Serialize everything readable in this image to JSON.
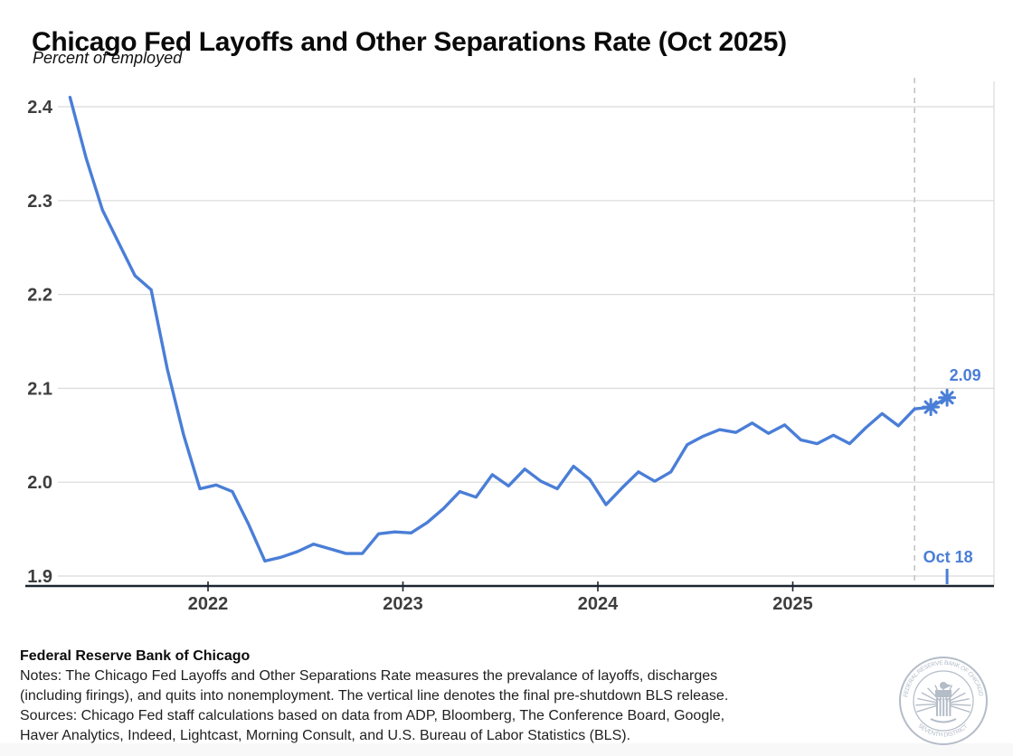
{
  "header": {
    "title": "Chicago Fed Layoffs and Other Separations Rate (Oct 2025)",
    "subtitle": "Percent of employed"
  },
  "chart_data": {
    "type": "line",
    "title": "Chicago Fed Layoffs and Other Separations Rate (Oct 2025)",
    "ylabel": "Percent of employed",
    "ylim": [
      1.9,
      2.42
    ],
    "grid": "horizontal",
    "ytick_labels": [
      "2.4",
      "2.3",
      "2.2",
      "2.1",
      "2.0",
      "1.9"
    ],
    "ytick_values": [
      2.4,
      2.3,
      2.2,
      2.1,
      2.0,
      1.9
    ],
    "xtick_labels": [
      "2022",
      "2023",
      "2024",
      "2025"
    ],
    "xtick_years": [
      2022,
      2023,
      2024,
      2025
    ],
    "line_color": "#4a7ed7",
    "series": [
      {
        "name": "Layoffs and other separations rate",
        "points": [
          {
            "m": "2021-04",
            "v": 2.41
          },
          {
            "m": "2021-05",
            "v": 2.345
          },
          {
            "m": "2021-06",
            "v": 2.29
          },
          {
            "m": "2021-07",
            "v": 2.255
          },
          {
            "m": "2021-08",
            "v": 2.22
          },
          {
            "m": "2021-09",
            "v": 2.205
          },
          {
            "m": "2021-10",
            "v": 2.12
          },
          {
            "m": "2021-11",
            "v": 2.05
          },
          {
            "m": "2021-12",
            "v": 1.993
          },
          {
            "m": "2022-01",
            "v": 1.997
          },
          {
            "m": "2022-02",
            "v": 1.99
          },
          {
            "m": "2022-03",
            "v": 1.955
          },
          {
            "m": "2022-04",
            "v": 1.916
          },
          {
            "m": "2022-05",
            "v": 1.92
          },
          {
            "m": "2022-06",
            "v": 1.926
          },
          {
            "m": "2022-07",
            "v": 1.934
          },
          {
            "m": "2022-08",
            "v": 1.929
          },
          {
            "m": "2022-09",
            "v": 1.924
          },
          {
            "m": "2022-10",
            "v": 1.924
          },
          {
            "m": "2022-11",
            "v": 1.945
          },
          {
            "m": "2022-12",
            "v": 1.947
          },
          {
            "m": "2023-01",
            "v": 1.946
          },
          {
            "m": "2023-02",
            "v": 1.957
          },
          {
            "m": "2023-03",
            "v": 1.972
          },
          {
            "m": "2023-04",
            "v": 1.99
          },
          {
            "m": "2023-05",
            "v": 1.984
          },
          {
            "m": "2023-06",
            "v": 2.008
          },
          {
            "m": "2023-07",
            "v": 1.996
          },
          {
            "m": "2023-08",
            "v": 2.014
          },
          {
            "m": "2023-09",
            "v": 2.001
          },
          {
            "m": "2023-10",
            "v": 1.993
          },
          {
            "m": "2023-11",
            "v": 2.017
          },
          {
            "m": "2023-12",
            "v": 2.003
          },
          {
            "m": "2024-01",
            "v": 1.976
          },
          {
            "m": "2024-02",
            "v": 1.994
          },
          {
            "m": "2024-03",
            "v": 2.011
          },
          {
            "m": "2024-04",
            "v": 2.001
          },
          {
            "m": "2024-05",
            "v": 2.011
          },
          {
            "m": "2024-06",
            "v": 2.04
          },
          {
            "m": "2024-07",
            "v": 2.049
          },
          {
            "m": "2024-08",
            "v": 2.056
          },
          {
            "m": "2024-09",
            "v": 2.053
          },
          {
            "m": "2024-10",
            "v": 2.063
          },
          {
            "m": "2024-11",
            "v": 2.052
          },
          {
            "m": "2024-12",
            "v": 2.061
          },
          {
            "m": "2025-01",
            "v": 2.045
          },
          {
            "m": "2025-02",
            "v": 2.041
          },
          {
            "m": "2025-03",
            "v": 2.05
          },
          {
            "m": "2025-04",
            "v": 2.041
          },
          {
            "m": "2025-05",
            "v": 2.058
          },
          {
            "m": "2025-06",
            "v": 2.073
          },
          {
            "m": "2025-07",
            "v": 2.06
          },
          {
            "m": "2025-08",
            "v": 2.078
          },
          {
            "m": "2025-09",
            "v": 2.08,
            "star": true
          },
          {
            "m": "2025-10",
            "v": 2.09,
            "star": true
          }
        ]
      }
    ],
    "vline": {
      "at_month": "2025-08",
      "style": "dashed",
      "meaning": "final pre-shutdown BLS release"
    },
    "annotations": {
      "last_value_label": "2.09",
      "last_date_label": "Oct 18"
    }
  },
  "footer": {
    "org": "Federal Reserve Bank of Chicago",
    "lines": [
      "Notes: The Chicago Fed Layoffs and Other Separations Rate measures the prevalance of layoffs, discharges",
      "(including firings), and quits into nonemployment. The vertical line denotes the final pre-shutdown BLS release.",
      "Sources: Chicago Fed staff calculations based on data from ADP, Bloomberg, The Conference Board, Google,",
      "Haver Analytics, Indeed, Lightcast, Morning Consult, and U.S. Bureau of Labor Statistics (BLS)."
    ]
  },
  "logo": {
    "ring_text_top": "FEDERAL RESERVE BANK OF CHICAGO",
    "ring_text_bottom": "SEVENTH DISTRICT",
    "color": "#b4bcc8"
  }
}
